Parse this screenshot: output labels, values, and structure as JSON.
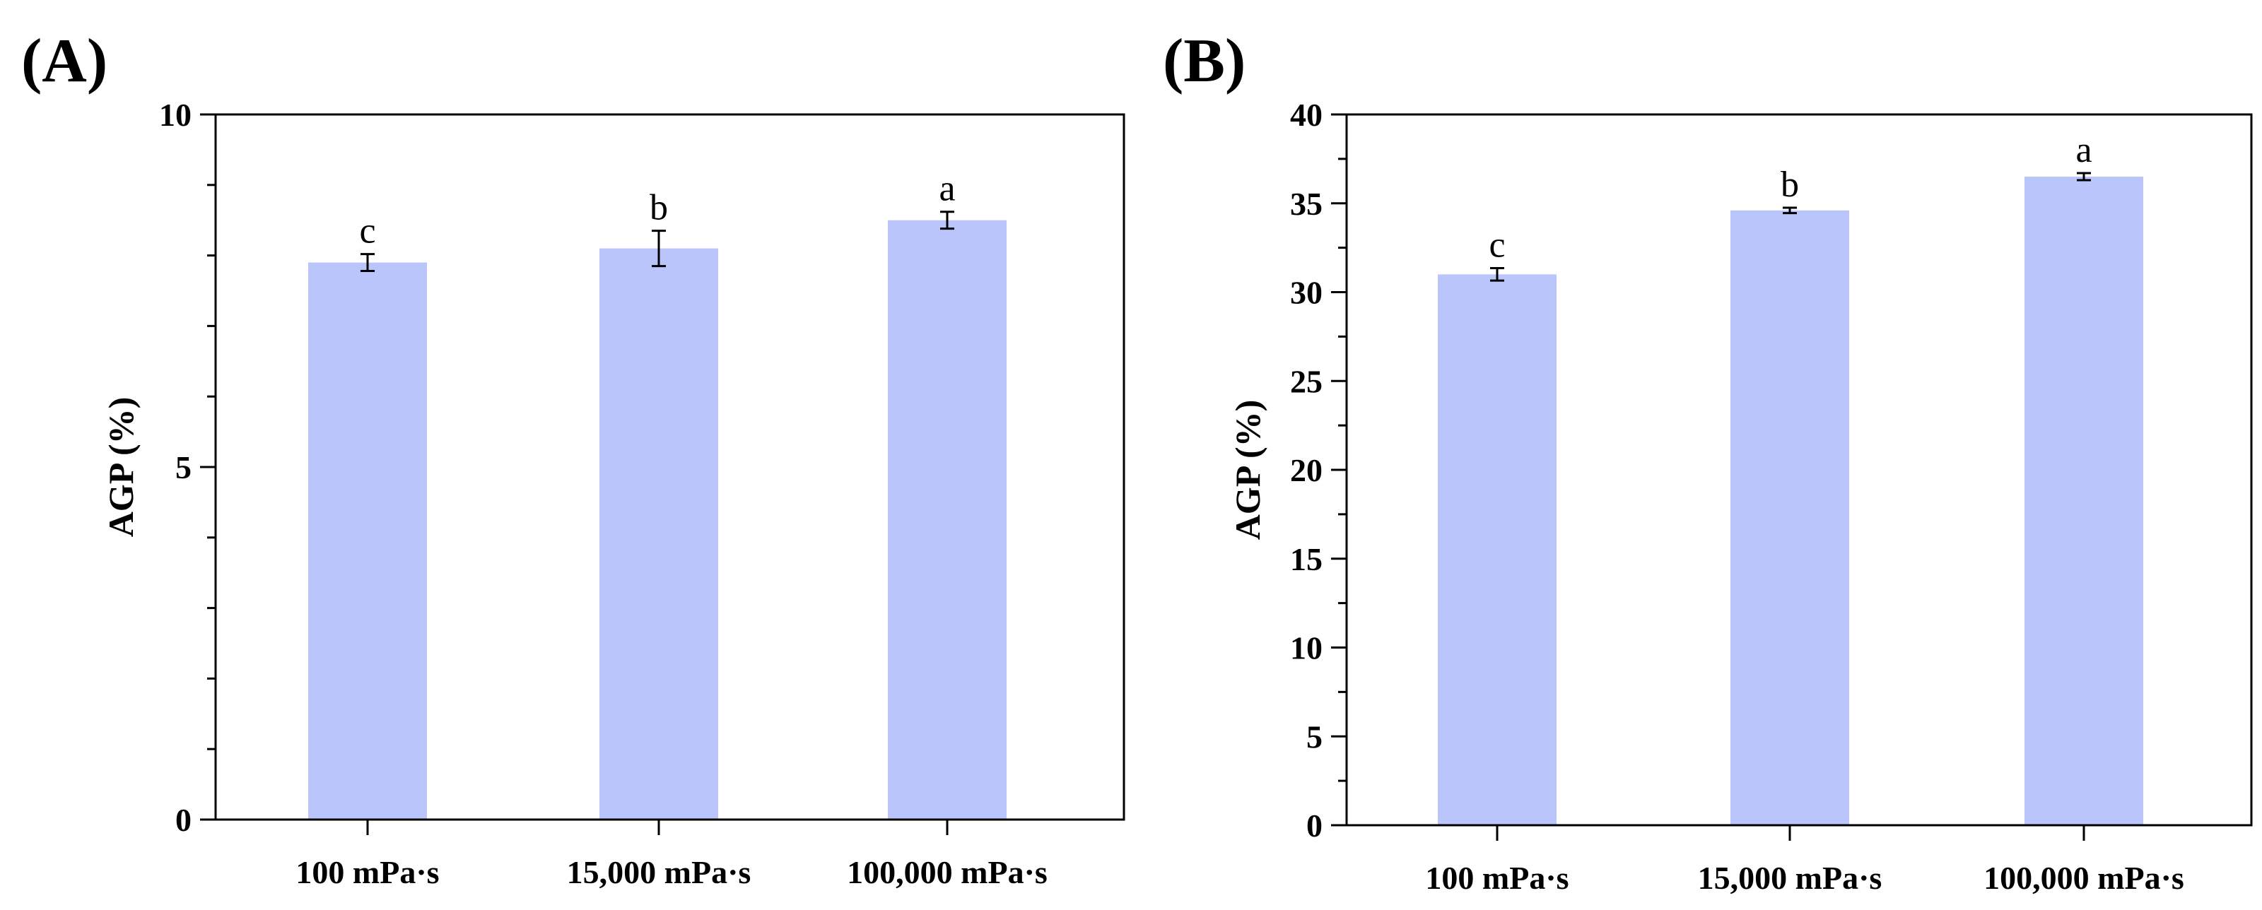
{
  "chart_data": [
    {
      "type": "bar",
      "panel_label": "(A)",
      "categories": [
        "100 mPa·s",
        "15,000 mPa·s",
        "100,000 mPa·s"
      ],
      "values": [
        7.9,
        8.1,
        8.5
      ],
      "errors": [
        0.12,
        0.25,
        0.12
      ],
      "significance_letters": [
        "c",
        "b",
        "a"
      ],
      "ylabel": "AGP (%)",
      "xlabel": "",
      "ylim": [
        0,
        10
      ],
      "major_ticks": [
        0,
        5,
        10
      ],
      "minor_ticks": [
        1,
        2,
        3,
        4,
        6,
        7,
        8,
        9
      ],
      "tick_labels": [
        "0",
        "5",
        "10"
      ],
      "bar_color": "#bac6fb"
    },
    {
      "type": "bar",
      "panel_label": "(B)",
      "categories": [
        "100 mPa·s",
        "15,000 mPa·s",
        "100,000 mPa·s"
      ],
      "values": [
        31.0,
        34.6,
        36.5
      ],
      "errors": [
        0.35,
        0.15,
        0.2
      ],
      "significance_letters": [
        "c",
        "b",
        "a"
      ],
      "ylabel": "AGP (%)",
      "xlabel": "",
      "ylim": [
        0,
        40
      ],
      "major_ticks": [
        0,
        5,
        10,
        15,
        20,
        25,
        30,
        35,
        40
      ],
      "minor_ticks": [
        2.5,
        7.5,
        12.5,
        17.5,
        22.5,
        27.5,
        32.5,
        37.5
      ],
      "tick_labels": [
        "0",
        "5",
        "10",
        "15",
        "20",
        "25",
        "30",
        "35",
        "40"
      ],
      "bar_color": "#bac6fb"
    }
  ]
}
